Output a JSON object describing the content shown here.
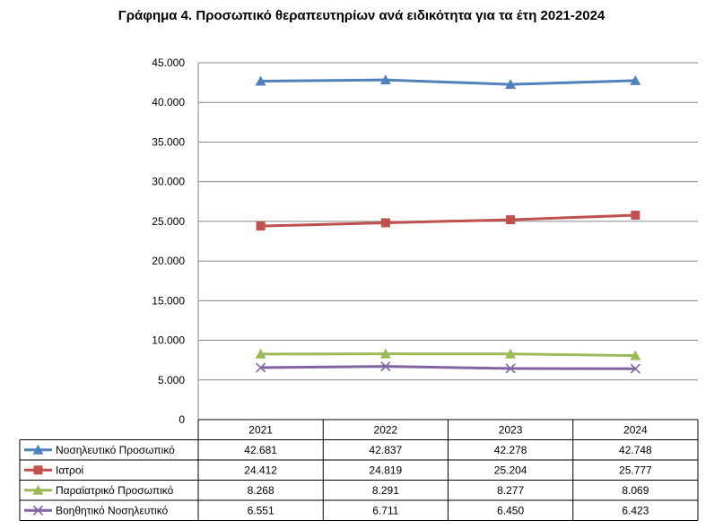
{
  "title": "Γράφημα 4. Προσωπικό θεραπευτηρίων ανά ειδικότητα για τα έτη 2021-2024",
  "chart_data": {
    "type": "line",
    "title": "Γράφημα 4. Προσωπικό θεραπευτηρίων ανά ειδικότητα για τα έτη 2021-2024",
    "categories": [
      "2021",
      "2022",
      "2023",
      "2024"
    ],
    "ylim": [
      0,
      45000
    ],
    "ytick_values": [
      0,
      5000,
      10000,
      15000,
      20000,
      25000,
      30000,
      35000,
      40000,
      45000
    ],
    "ytick_labels": [
      "0",
      "5.000",
      "10.000",
      "15.000",
      "20.000",
      "25.000",
      "30.000",
      "35.000",
      "40.000",
      "45.000"
    ],
    "grid": true,
    "legend": "data table below plot",
    "series": [
      {
        "name": "Νοσηλευτικό Προσωπικό",
        "values": [
          42681,
          42837,
          42278,
          42748
        ],
        "labels": [
          "42.681",
          "42.837",
          "42.278",
          "42.748"
        ],
        "color": "#4F81BD",
        "marker": "triangle"
      },
      {
        "name": "Ιατροί",
        "values": [
          24412,
          24819,
          25204,
          25777
        ],
        "labels": [
          "24.412",
          "24.819",
          "25.204",
          "25.777"
        ],
        "color": "#C0504D",
        "marker": "square"
      },
      {
        "name": "Παραϊατρικό Προσωπικό",
        "values": [
          8268,
          8291,
          8277,
          8069
        ],
        "labels": [
          "8.268",
          "8.291",
          "8.277",
          "8.069"
        ],
        "color": "#9BBB59",
        "marker": "triangle"
      },
      {
        "name": "Βοηθητικό Νοσηλευτικό",
        "values": [
          6551,
          6711,
          6450,
          6423
        ],
        "labels": [
          "6.551",
          "6.711",
          "6.450",
          "6.423"
        ],
        "color": "#8064A2",
        "marker": "x"
      }
    ]
  }
}
